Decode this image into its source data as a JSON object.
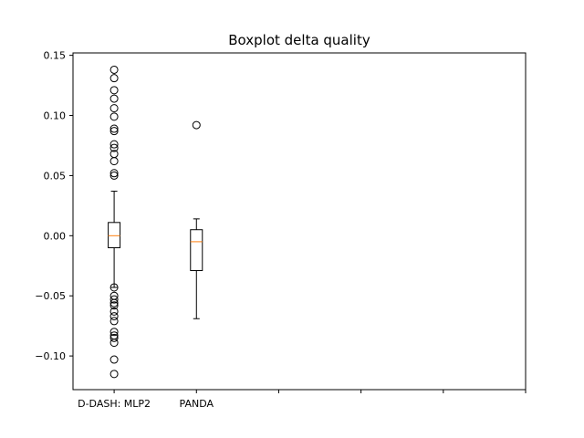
{
  "chart_data": {
    "type": "boxplot",
    "title": "Boxplot delta quality",
    "xlabel": "",
    "ylabel": "",
    "ylim": [
      -0.128,
      0.152
    ],
    "yticks": [
      -0.1,
      -0.05,
      0.0,
      0.05,
      0.1,
      0.15
    ],
    "ytick_labels": [
      "−0.10",
      "−0.05",
      "0.00",
      "0.05",
      "0.10",
      "0.15"
    ],
    "xticks": [
      1,
      2,
      3,
      4,
      5,
      6
    ],
    "xtick_labels": [
      "D-DASH: MLP2",
      "PANDA",
      "",
      "",
      "",
      ""
    ],
    "xlim": [
      0.5,
      6.0
    ],
    "grid": false,
    "colors": {
      "median": "#ff7f0e",
      "box": "#000000",
      "flier": "#000000"
    },
    "series": [
      {
        "name": "D-DASH: MLP2",
        "position": 1,
        "q1": -0.01,
        "median": 0.0,
        "q3": 0.011,
        "whisker_low": -0.043,
        "whisker_high": 0.037,
        "fliers": [
          0.138,
          0.131,
          0.121,
          0.114,
          0.106,
          0.099,
          0.089,
          0.087,
          0.076,
          0.073,
          0.068,
          0.062,
          0.052,
          0.05,
          -0.043,
          -0.05,
          -0.053,
          -0.056,
          -0.058,
          -0.063,
          -0.067,
          -0.071,
          -0.08,
          -0.083,
          -0.085,
          -0.089,
          -0.103,
          -0.115
        ]
      },
      {
        "name": "PANDA",
        "position": 2,
        "q1": -0.029,
        "median": -0.005,
        "q3": 0.005,
        "whisker_low": -0.069,
        "whisker_high": 0.014,
        "fliers": [
          0.092
        ]
      }
    ]
  }
}
